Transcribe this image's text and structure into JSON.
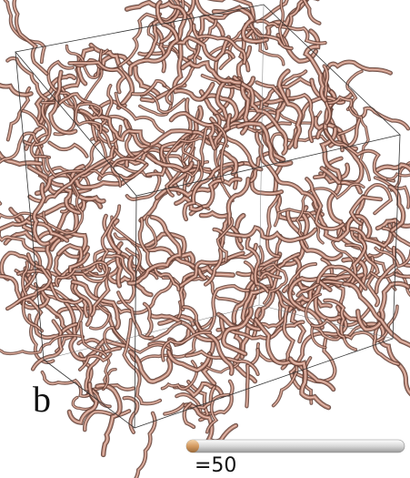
{
  "panel_label": "b",
  "legend": {
    "label": "=50"
  }
}
